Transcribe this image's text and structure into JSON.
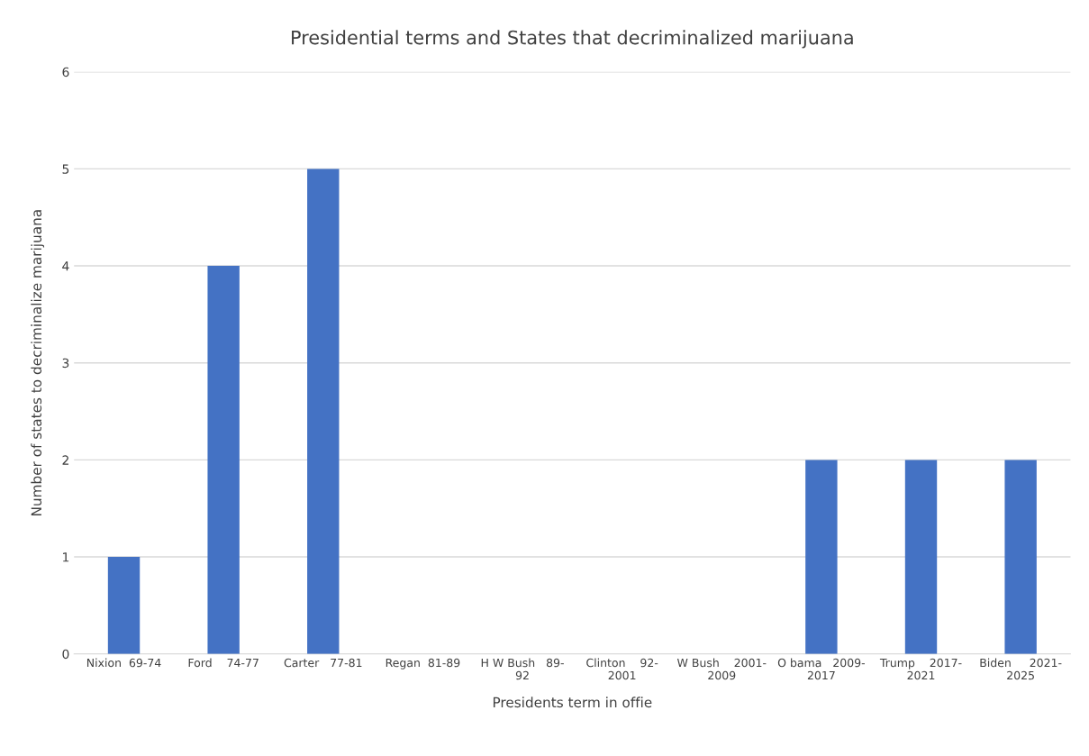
{
  "chart_data": {
    "type": "bar",
    "title": "Presidential terms and States that decriminalized marijuana",
    "xlabel": "Presidents term in offie",
    "ylabel": "Number of states to decriminalize marijuana",
    "categories": [
      "Nixion  69-74",
      "Ford    74-77",
      "Carter   77-81",
      "Regan  81-89",
      "H W Bush   89-\n92",
      "Clinton    92-\n2001",
      "W Bush    2001-\n2009",
      "O bama   2009-\n2017",
      "Trump    2017-\n2021",
      "Biden     2021-\n2025"
    ],
    "values": [
      1,
      4,
      5,
      0,
      0,
      0,
      0,
      2,
      2,
      2
    ],
    "color": "#4472c4",
    "ylim": [
      0,
      6
    ],
    "yticks": [
      0,
      1,
      2,
      3,
      4,
      5,
      6
    ],
    "grid": "y"
  }
}
